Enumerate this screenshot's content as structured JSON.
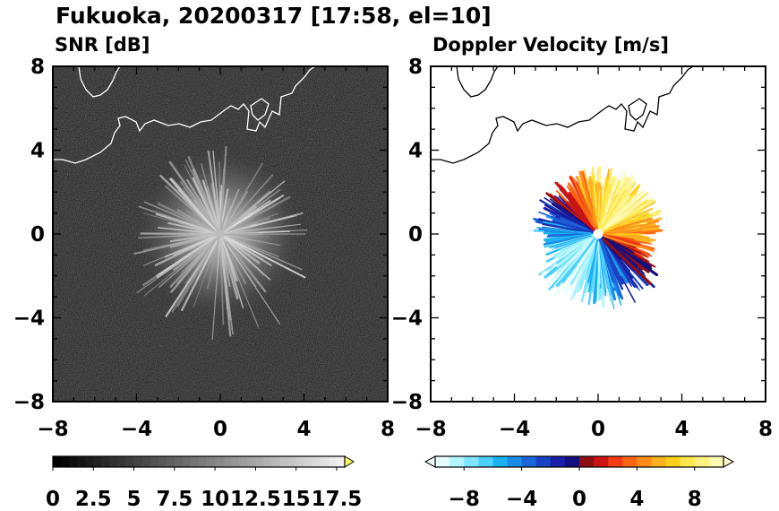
{
  "title": "Fukuoka, 20200317 [17:58, el=10]",
  "chart_data": [
    {
      "type": "heatmap",
      "title": "SNR [dB]",
      "xlim": [
        -8,
        8
      ],
      "ylim": [
        -8,
        8
      ],
      "xticks": [
        "−8",
        "−4",
        "0",
        "4",
        "8"
      ],
      "yticks": [
        "8",
        "4",
        "0",
        "−4",
        "−8"
      ],
      "background_color": "#262626",
      "coastline_color": "#ffffff",
      "colorbar": {
        "labels": [
          "0",
          "2.5",
          "5",
          "7.5",
          "10",
          "12.5",
          "15",
          "17.5"
        ],
        "range": [
          0,
          18
        ],
        "extend": "max",
        "extend_color": "#ffff66"
      }
    },
    {
      "type": "heatmap",
      "title": "Doppler Velocity [m/s]",
      "xlim": [
        -8,
        8
      ],
      "ylim": [
        -8,
        8
      ],
      "xticks": [
        "−8",
        "−4",
        "0",
        "4",
        "8"
      ],
      "yticks": [
        "8",
        "4",
        "0",
        "−4",
        "−8"
      ],
      "background_color": "#ffffff",
      "coastline_color": "#000000",
      "colorbar": {
        "labels": [
          "−8",
          "−4",
          "0",
          "4",
          "8"
        ],
        "range": [
          -10,
          10
        ],
        "extend": "both",
        "colors": [
          "#e6ffff",
          "#b3f5ff",
          "#80e6ff",
          "#4dcfff",
          "#1ab2f2",
          "#1a8ce6",
          "#1a66d9",
          "#1a40c4",
          "#1a1fa8",
          "#140f80",
          "#8c0f14",
          "#cc1414",
          "#f23a14",
          "#ff6614",
          "#ff8c1a",
          "#ffb21f",
          "#ffd11f",
          "#ffe84d",
          "#fff280",
          "#fffab3"
        ]
      }
    }
  ]
}
